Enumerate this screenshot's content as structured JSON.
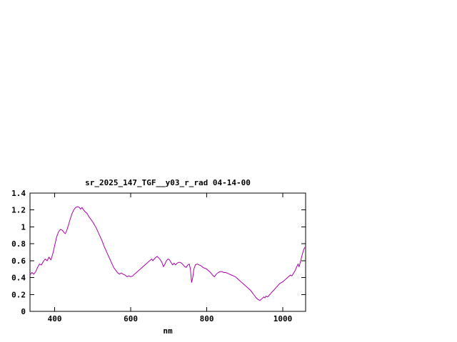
{
  "window": {
    "background": "#ffffff"
  },
  "chart": {
    "title": "sr_2025_147_TGF__y03_r_rad 04-14-00",
    "xlabel": "nm",
    "line_color": "#aa00aa",
    "axis_color": "#000000"
  },
  "chart_data": {
    "type": "line",
    "title": "sr_2025_147_TGF__y03_r_rad 04-14-00",
    "xlabel": "nm",
    "ylabel": "",
    "xlim": [
      335,
      1060
    ],
    "ylim": [
      0,
      1.4
    ],
    "xticks": [
      400,
      600,
      800,
      1000
    ],
    "yticks": [
      0,
      0.2,
      0.4,
      0.6,
      0.8,
      1,
      1.2,
      1.4
    ],
    "grid": false,
    "legend": "none",
    "series": [
      {
        "name": "sr_2025_147_TGF__y03_r_rad",
        "color": "#aa00aa",
        "points": [
          [
            335,
            0.43
          ],
          [
            340,
            0.46
          ],
          [
            345,
            0.44
          ],
          [
            350,
            0.47
          ],
          [
            355,
            0.52
          ],
          [
            360,
            0.56
          ],
          [
            365,
            0.55
          ],
          [
            370,
            0.59
          ],
          [
            375,
            0.62
          ],
          [
            380,
            0.6
          ],
          [
            385,
            0.64
          ],
          [
            390,
            0.61
          ],
          [
            395,
            0.68
          ],
          [
            400,
            0.78
          ],
          [
            405,
            0.88
          ],
          [
            410,
            0.94
          ],
          [
            415,
            0.97
          ],
          [
            420,
            0.96
          ],
          [
            425,
            0.93
          ],
          [
            428,
            0.92
          ],
          [
            432,
            0.96
          ],
          [
            436,
            1.02
          ],
          [
            440,
            1.08
          ],
          [
            445,
            1.15
          ],
          [
            450,
            1.2
          ],
          [
            455,
            1.23
          ],
          [
            460,
            1.24
          ],
          [
            465,
            1.23
          ],
          [
            468,
            1.21
          ],
          [
            472,
            1.23
          ],
          [
            476,
            1.2
          ],
          [
            480,
            1.18
          ],
          [
            485,
            1.16
          ],
          [
            490,
            1.12
          ],
          [
            495,
            1.09
          ],
          [
            500,
            1.06
          ],
          [
            505,
            1.02
          ],
          [
            510,
            0.98
          ],
          [
            515,
            0.93
          ],
          [
            520,
            0.88
          ],
          [
            525,
            0.83
          ],
          [
            530,
            0.77
          ],
          [
            535,
            0.72
          ],
          [
            540,
            0.67
          ],
          [
            545,
            0.62
          ],
          [
            550,
            0.57
          ],
          [
            555,
            0.52
          ],
          [
            560,
            0.49
          ],
          [
            565,
            0.46
          ],
          [
            570,
            0.44
          ],
          [
            575,
            0.455
          ],
          [
            580,
            0.44
          ],
          [
            585,
            0.43
          ],
          [
            590,
            0.41
          ],
          [
            595,
            0.42
          ],
          [
            600,
            0.41
          ],
          [
            605,
            0.42
          ],
          [
            610,
            0.44
          ],
          [
            615,
            0.46
          ],
          [
            620,
            0.48
          ],
          [
            625,
            0.5
          ],
          [
            630,
            0.52
          ],
          [
            635,
            0.54
          ],
          [
            640,
            0.56
          ],
          [
            645,
            0.58
          ],
          [
            650,
            0.6
          ],
          [
            655,
            0.62
          ],
          [
            658,
            0.6
          ],
          [
            662,
            0.62
          ],
          [
            666,
            0.64
          ],
          [
            670,
            0.65
          ],
          [
            674,
            0.63
          ],
          [
            678,
            0.61
          ],
          [
            682,
            0.58
          ],
          [
            686,
            0.53
          ],
          [
            690,
            0.56
          ],
          [
            694,
            0.6
          ],
          [
            698,
            0.62
          ],
          [
            702,
            0.61
          ],
          [
            706,
            0.58
          ],
          [
            710,
            0.55
          ],
          [
            714,
            0.57
          ],
          [
            718,
            0.55
          ],
          [
            722,
            0.57
          ],
          [
            726,
            0.58
          ],
          [
            730,
            0.58
          ],
          [
            734,
            0.57
          ],
          [
            738,
            0.55
          ],
          [
            742,
            0.53
          ],
          [
            746,
            0.52
          ],
          [
            750,
            0.55
          ],
          [
            754,
            0.56
          ],
          [
            757,
            0.5
          ],
          [
            760,
            0.34
          ],
          [
            763,
            0.4
          ],
          [
            766,
            0.5
          ],
          [
            770,
            0.55
          ],
          [
            775,
            0.56
          ],
          [
            780,
            0.55
          ],
          [
            785,
            0.54
          ],
          [
            790,
            0.52
          ],
          [
            795,
            0.51
          ],
          [
            800,
            0.5
          ],
          [
            805,
            0.48
          ],
          [
            810,
            0.46
          ],
          [
            815,
            0.43
          ],
          [
            820,
            0.41
          ],
          [
            825,
            0.44
          ],
          [
            830,
            0.46
          ],
          [
            835,
            0.47
          ],
          [
            840,
            0.47
          ],
          [
            845,
            0.46
          ],
          [
            850,
            0.46
          ],
          [
            855,
            0.45
          ],
          [
            860,
            0.44
          ],
          [
            865,
            0.43
          ],
          [
            870,
            0.42
          ],
          [
            875,
            0.41
          ],
          [
            880,
            0.39
          ],
          [
            885,
            0.37
          ],
          [
            890,
            0.35
          ],
          [
            895,
            0.33
          ],
          [
            900,
            0.31
          ],
          [
            905,
            0.29
          ],
          [
            910,
            0.27
          ],
          [
            915,
            0.25
          ],
          [
            920,
            0.22
          ],
          [
            925,
            0.19
          ],
          [
            930,
            0.16
          ],
          [
            935,
            0.14
          ],
          [
            940,
            0.13
          ],
          [
            945,
            0.15
          ],
          [
            950,
            0.17
          ],
          [
            953,
            0.16
          ],
          [
            956,
            0.18
          ],
          [
            960,
            0.17
          ],
          [
            964,
            0.19
          ],
          [
            968,
            0.21
          ],
          [
            972,
            0.23
          ],
          [
            976,
            0.25
          ],
          [
            980,
            0.27
          ],
          [
            984,
            0.29
          ],
          [
            988,
            0.31
          ],
          [
            992,
            0.33
          ],
          [
            996,
            0.34
          ],
          [
            1000,
            0.35
          ],
          [
            1005,
            0.37
          ],
          [
            1010,
            0.39
          ],
          [
            1015,
            0.41
          ],
          [
            1020,
            0.43
          ],
          [
            1024,
            0.42
          ],
          [
            1028,
            0.45
          ],
          [
            1032,
            0.48
          ],
          [
            1036,
            0.52
          ],
          [
            1040,
            0.56
          ],
          [
            1043,
            0.53
          ],
          [
            1047,
            0.6
          ],
          [
            1051,
            0.67
          ],
          [
            1055,
            0.73
          ],
          [
            1058,
            0.76
          ]
        ]
      }
    ]
  }
}
